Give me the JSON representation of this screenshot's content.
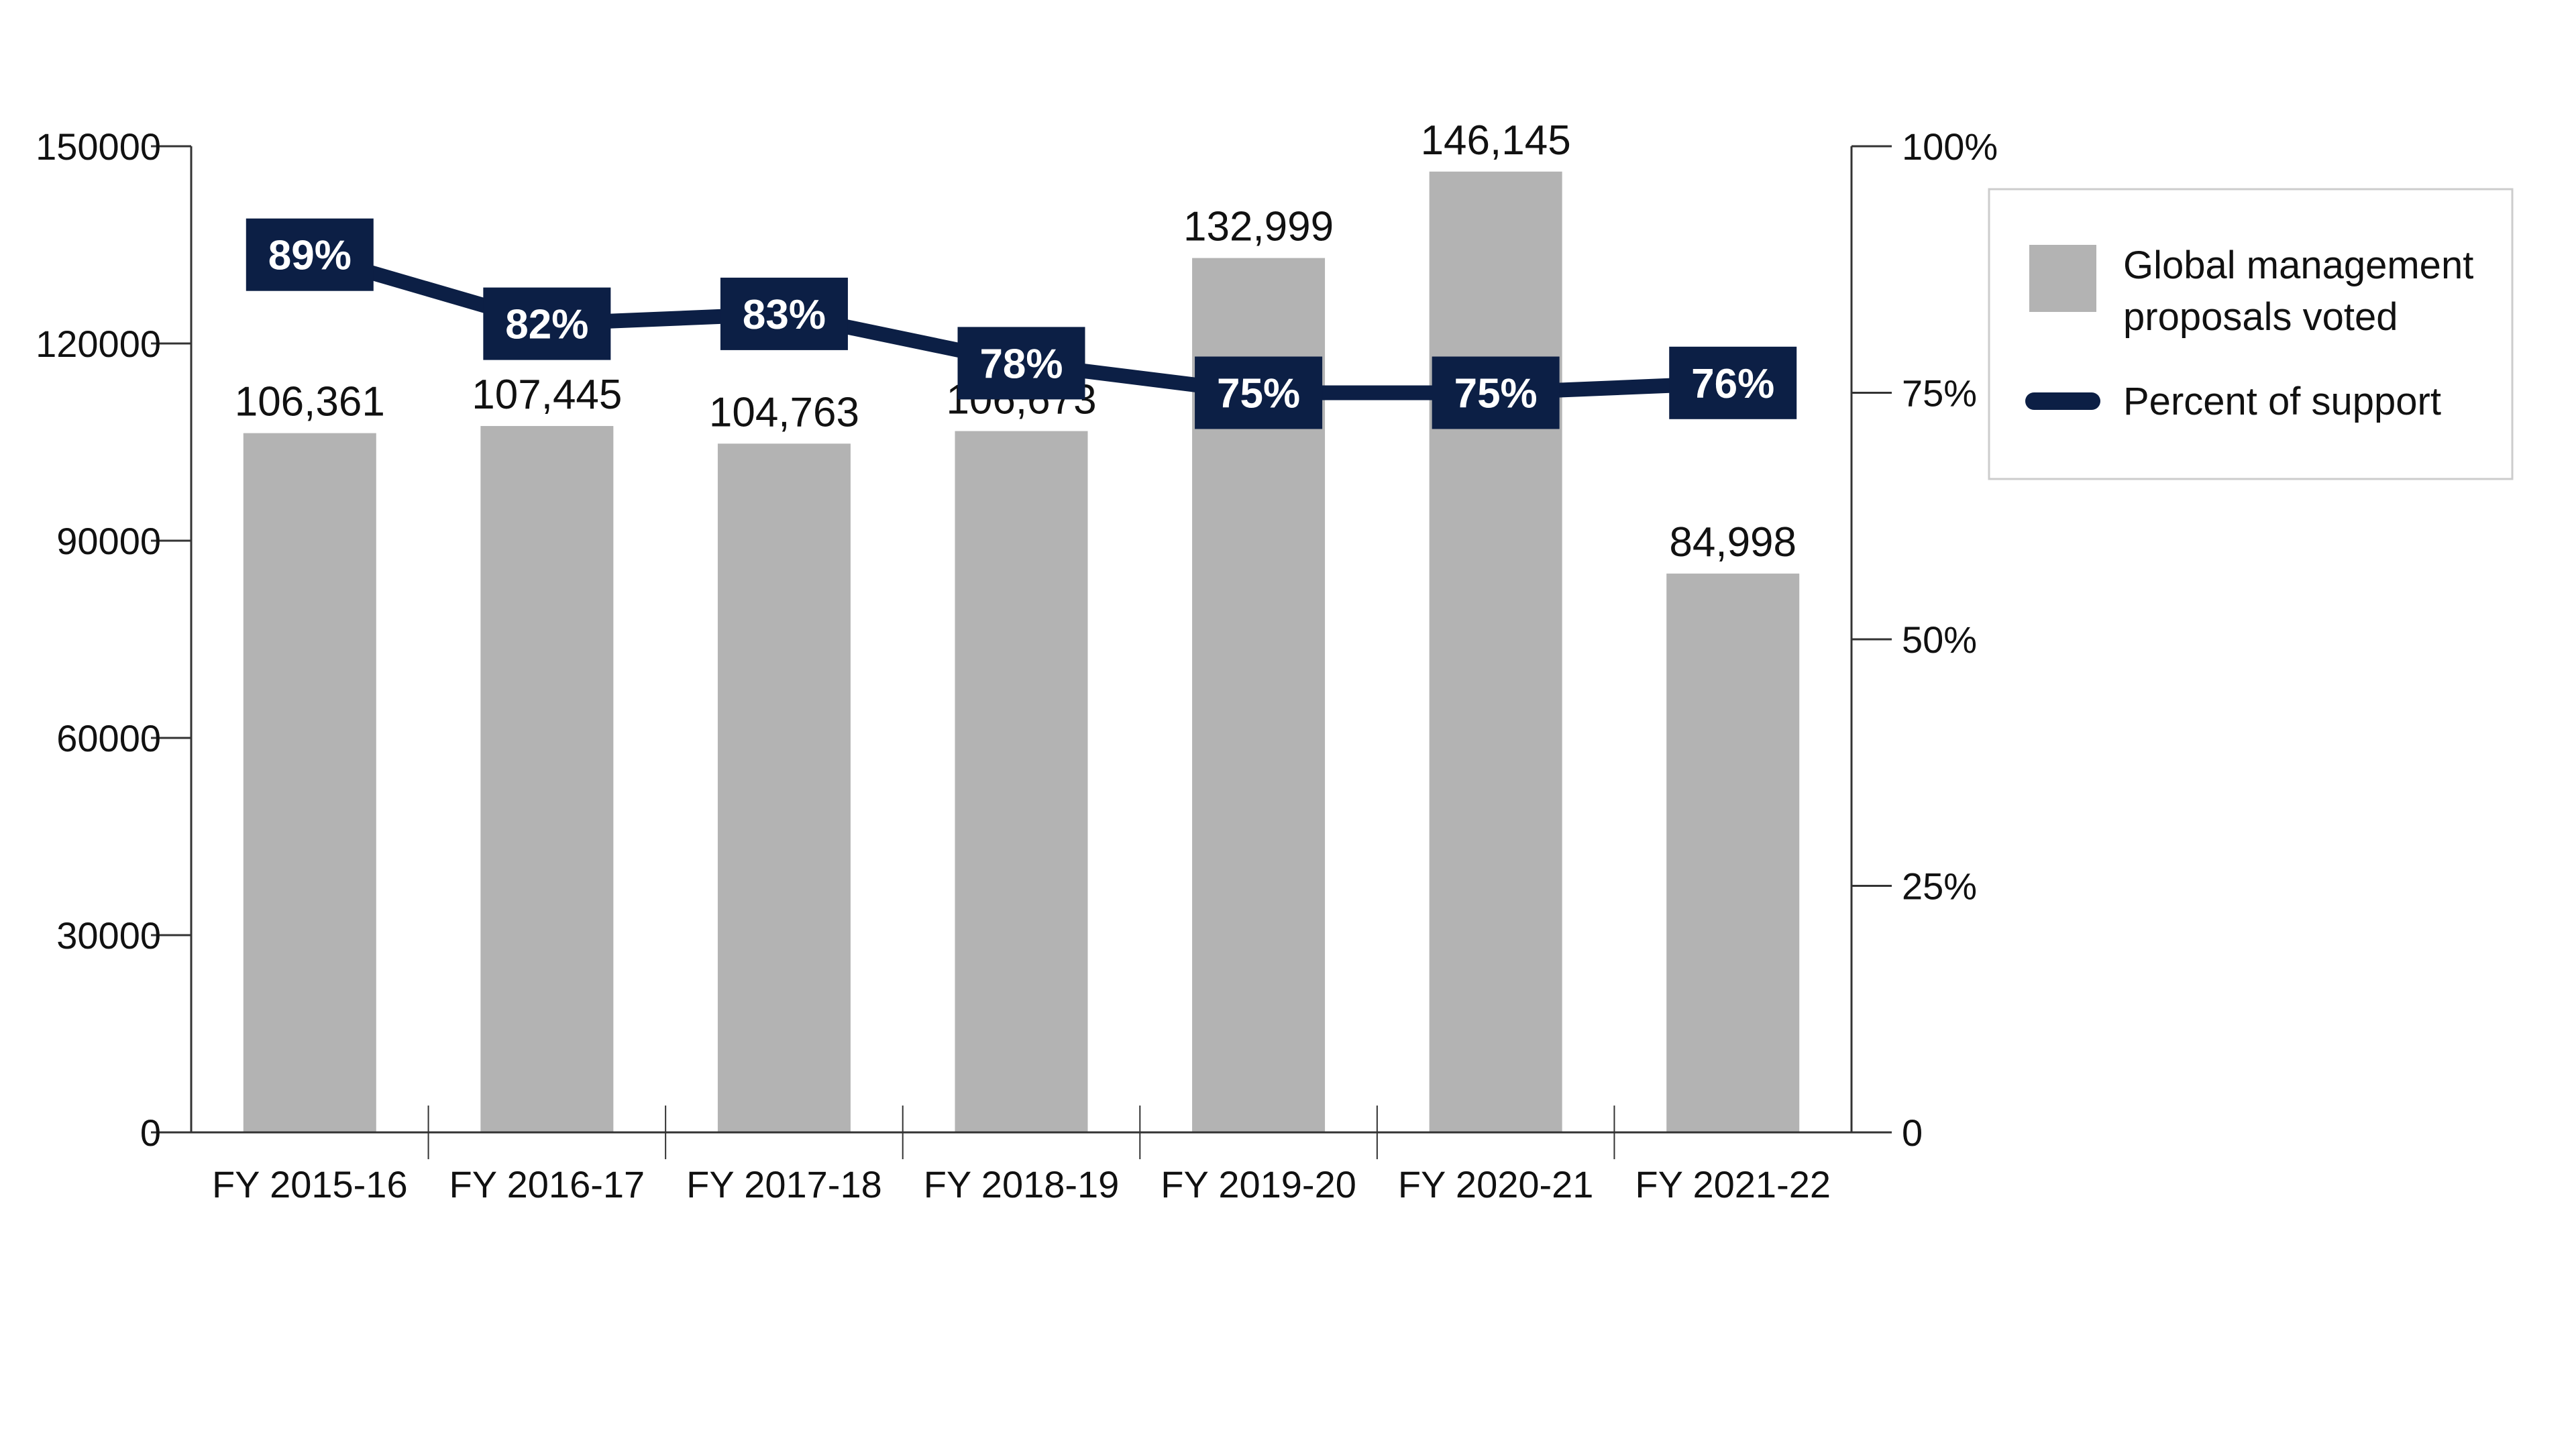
{
  "chart_data": {
    "type": "bar",
    "categories": [
      "FY 2015-16",
      "FY 2016-17",
      "FY 2017-18",
      "FY 2018-19",
      "FY 2019-20",
      "FY 2020-21",
      "FY 2021-22"
    ],
    "series": [
      {
        "name": "Global management proposals voted",
        "type": "bar",
        "axis": "left",
        "values": [
          106361,
          107445,
          104763,
          106673,
          132999,
          146145,
          84998
        ],
        "labels": [
          "106,361",
          "107,445",
          "104,763",
          "106,673",
          "132,999",
          "146,145",
          "84,998"
        ]
      },
      {
        "name": "Percent of support",
        "type": "line",
        "axis": "right",
        "values": [
          89,
          82,
          83,
          78,
          75,
          75,
          76
        ],
        "labels": [
          "89%",
          "82%",
          "83%",
          "78%",
          "75%",
          "75%",
          "76%"
        ]
      }
    ],
    "y_left": {
      "ylim": [
        0,
        150000
      ],
      "ticks": [
        "0",
        "30000",
        "60000",
        "90000",
        "120000",
        "150000"
      ]
    },
    "y_right": {
      "ylim": [
        0,
        100
      ],
      "ticks": [
        "0",
        "25%",
        "50%",
        "75%",
        "100%"
      ]
    },
    "grid": false,
    "legend": {
      "placement": "right",
      "items": [
        {
          "line1": "Global management",
          "line2": "proposals voted",
          "marker": "square"
        },
        {
          "line1": "Percent of support",
          "line2": "",
          "marker": "line"
        }
      ]
    },
    "colors": {
      "bar": "#b3b3b3",
      "line": "#0c1f45",
      "label_box": "#0c1f45",
      "axis": "#333333"
    },
    "title": "",
    "xlabel": "",
    "ylabel": ""
  }
}
